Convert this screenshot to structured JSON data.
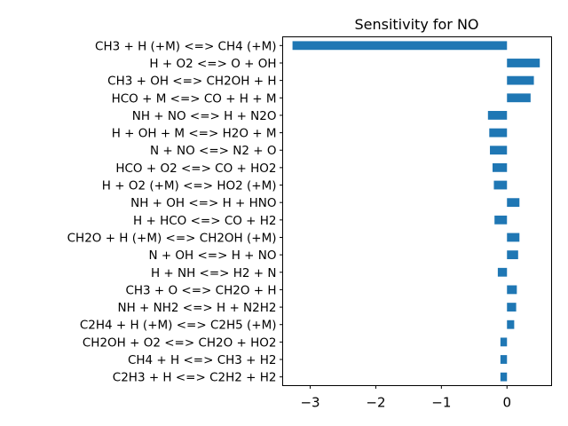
{
  "chart_data": {
    "type": "bar",
    "orientation": "horizontal",
    "title": "Sensitivity for NO",
    "xlabel": "",
    "ylabel": "",
    "xlim": [
      -3.42,
      0.68
    ],
    "xticks": [
      -3,
      -2,
      -1,
      0
    ],
    "xtick_labels": [
      "−3",
      "−2",
      "−1",
      "0"
    ],
    "grid": false,
    "legend": "none",
    "bar_color": "#1f77b4",
    "categories": [
      "CH3 + H (+M) <=> CH4 (+M)",
      "H + O2 <=> O + OH",
      "CH3 + OH <=> CH2OH + H",
      "HCO + M <=> CO + H + M",
      "NH + NO <=> H + N2O",
      "H + OH + M <=> H2O + M",
      "N + NO <=> N2 + O",
      "HCO + O2 <=> CO + HO2",
      "H + O2 (+M) <=> HO2 (+M)",
      "NH + OH <=> H + HNO",
      "H + HCO <=> CO + H2",
      "CH2O + H (+M) <=> CH2OH (+M)",
      "N + OH <=> H + NO",
      "H + NH <=> H2 + N",
      "CH3 + O <=> CH2O + H",
      "NH + NH2 <=> H + N2H2",
      "C2H4 + H (+M) <=> C2H5 (+M)",
      "CH2OH + O2 <=> CH2O + HO2",
      "CH4 + H <=> CH3 + H2",
      "C2H3 + H <=> C2H2 + H2"
    ],
    "values": [
      -3.27,
      0.5,
      0.41,
      0.36,
      -0.29,
      -0.27,
      -0.26,
      -0.22,
      -0.2,
      0.19,
      -0.19,
      0.19,
      0.17,
      -0.14,
      0.15,
      0.14,
      0.11,
      -0.1,
      -0.1,
      -0.1
    ]
  }
}
